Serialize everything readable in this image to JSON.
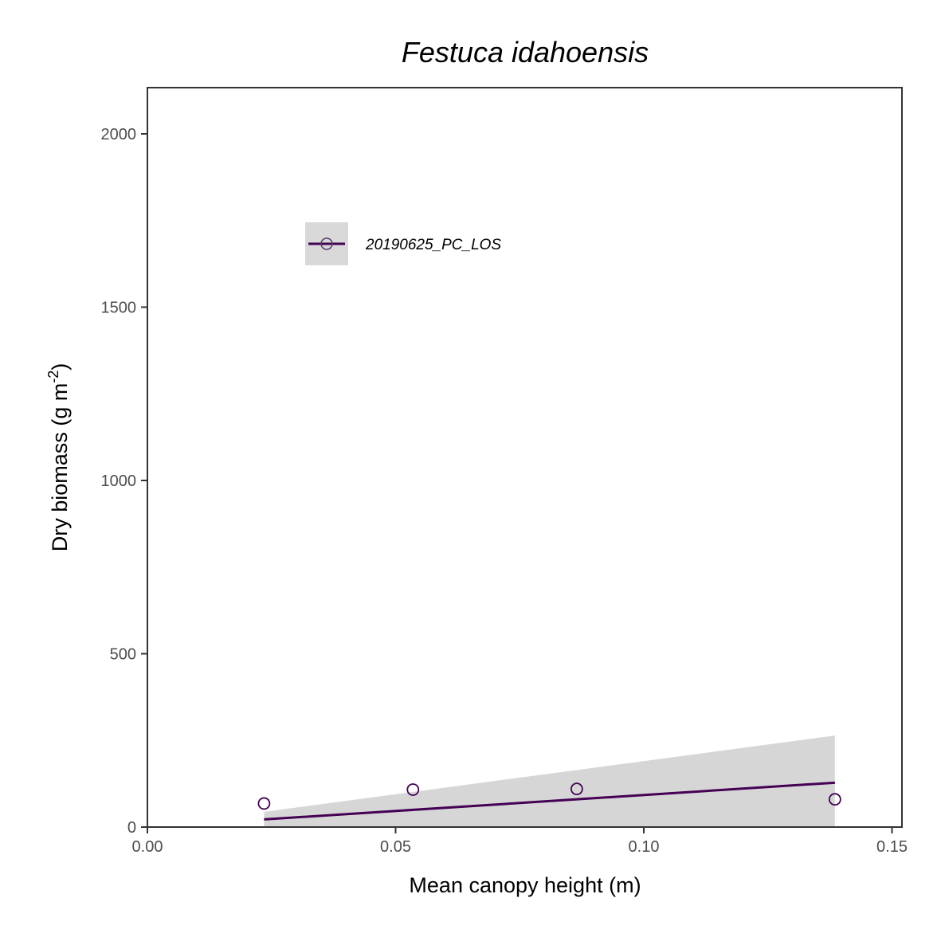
{
  "chart_data": {
    "type": "scatter",
    "title": "Festuca idahoensis",
    "xlabel": "Mean canopy height (m)",
    "ylabel": {
      "prefix": "Dry biomass (g m",
      "superscript": "-2",
      "suffix": ")"
    },
    "xlim": [
      0,
      0.15
    ],
    "ylim": [
      0,
      2130
    ],
    "x_ticks": [
      0.0,
      0.05,
      0.1,
      0.15
    ],
    "x_tick_labels": [
      "0.00",
      "0.05",
      "0.10",
      "0.15"
    ],
    "y_ticks": [
      0,
      500,
      1000,
      1500,
      2000
    ],
    "y_tick_labels": [
      "0",
      "500",
      "1000",
      "1500",
      "2000"
    ],
    "grid": false,
    "legend_position": "top-left inside",
    "series": [
      {
        "name": "20190625_PC_LOS",
        "color": "#440154",
        "points": [
          {
            "x": 0.0235,
            "y": 68
          },
          {
            "x": 0.0535,
            "y": 108
          },
          {
            "x": 0.0865,
            "y": 110
          },
          {
            "x": 0.1385,
            "y": 80
          }
        ],
        "fit_line": [
          {
            "x": 0.0235,
            "y": 22
          },
          {
            "x": 0.1385,
            "y": 128
          }
        ],
        "confidence_band": {
          "x": [
            0.0235,
            0.1385
          ],
          "upper": [
            44,
            264
          ],
          "lower": [
            0,
            0
          ]
        }
      }
    ]
  }
}
